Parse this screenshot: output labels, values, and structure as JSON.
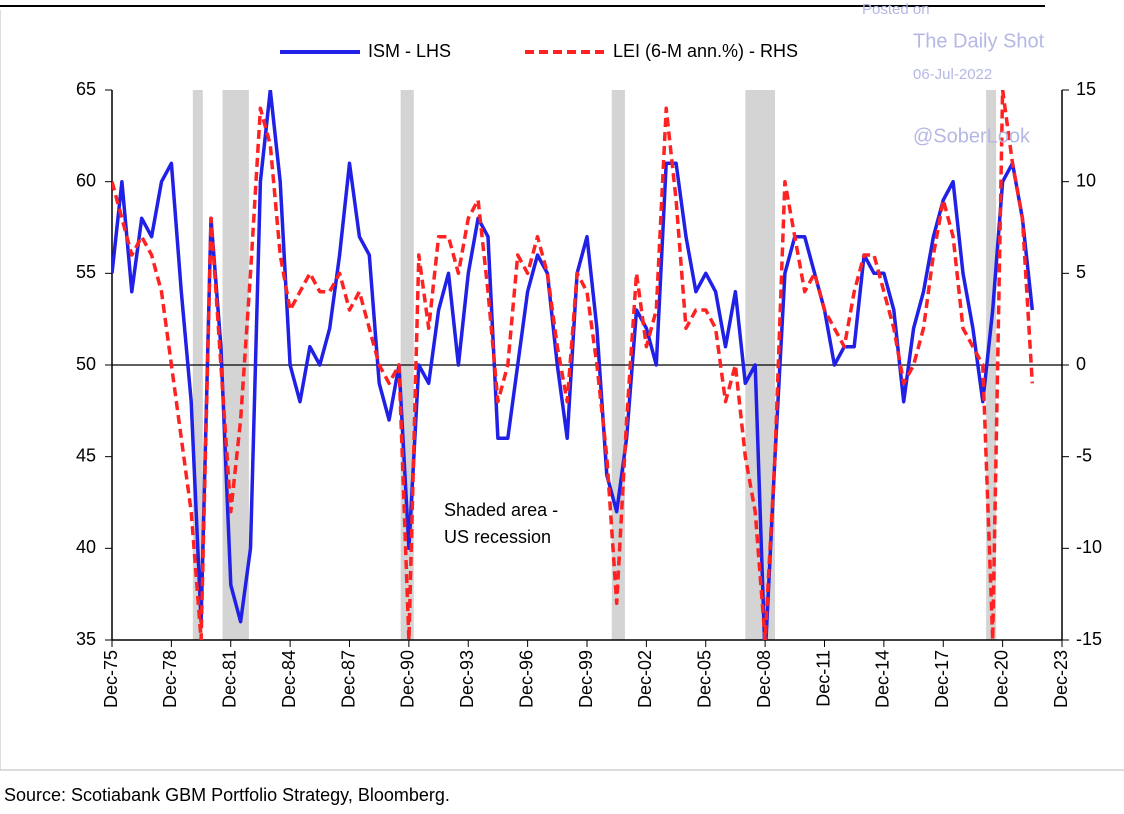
{
  "chart_data": {
    "type": "line",
    "legend": "top",
    "x": [
      "1975-12",
      "1976-06",
      "1976-12",
      "1977-06",
      "1977-12",
      "1978-06",
      "1978-12",
      "1979-06",
      "1979-12",
      "1980-06",
      "1980-12",
      "1981-06",
      "1981-12",
      "1982-06",
      "1982-12",
      "1983-06",
      "1983-12",
      "1984-06",
      "1984-12",
      "1985-06",
      "1985-12",
      "1986-06",
      "1986-12",
      "1987-06",
      "1987-12",
      "1988-06",
      "1988-12",
      "1989-06",
      "1989-12",
      "1990-06",
      "1990-12",
      "1991-06",
      "1991-12",
      "1992-06",
      "1992-12",
      "1993-06",
      "1993-12",
      "1994-06",
      "1994-12",
      "1995-06",
      "1995-12",
      "1996-06",
      "1996-12",
      "1997-06",
      "1997-12",
      "1998-06",
      "1998-12",
      "1999-06",
      "1999-12",
      "2000-06",
      "2000-12",
      "2001-06",
      "2001-12",
      "2002-06",
      "2002-12",
      "2003-06",
      "2003-12",
      "2004-06",
      "2004-12",
      "2005-06",
      "2005-12",
      "2006-06",
      "2006-12",
      "2007-06",
      "2007-12",
      "2008-06",
      "2008-12",
      "2009-06",
      "2009-12",
      "2010-06",
      "2010-12",
      "2011-06",
      "2011-12",
      "2012-06",
      "2012-12",
      "2013-06",
      "2013-12",
      "2014-06",
      "2014-12",
      "2015-06",
      "2015-12",
      "2016-06",
      "2016-12",
      "2017-06",
      "2017-12",
      "2018-06",
      "2018-12",
      "2019-06",
      "2019-12",
      "2020-06",
      "2020-12",
      "2021-06",
      "2021-12",
      "2022-06"
    ],
    "series": [
      {
        "name": "ISM - LHS",
        "color": "#2020e6",
        "axis": "y",
        "dash": false,
        "values": [
          55,
          60,
          54,
          58,
          57,
          60,
          61,
          54,
          48,
          36,
          58,
          51,
          38,
          36,
          40,
          60,
          65,
          60,
          50,
          48,
          51,
          50,
          52,
          56,
          61,
          57,
          56,
          49,
          47,
          50,
          40,
          50,
          49,
          53,
          55,
          50,
          55,
          58,
          57,
          46,
          46,
          50,
          54,
          56,
          55,
          50,
          46,
          55,
          57,
          52,
          44,
          42,
          46,
          53,
          52,
          50,
          61,
          61,
          57,
          54,
          55,
          54,
          51,
          54,
          49,
          50,
          34,
          45,
          55,
          57,
          57,
          55,
          53,
          50,
          51,
          51,
          56,
          55,
          55,
          53,
          48,
          52,
          54,
          57,
          59,
          60,
          55,
          52,
          48,
          53,
          60,
          61,
          58,
          53
        ]
      },
      {
        "name": "LEI (6-M ann.%) - RHS",
        "color": "#ff2222",
        "axis": "y2",
        "dash": true,
        "values": [
          10,
          8,
          6,
          7,
          6,
          4,
          0,
          -4,
          -8,
          -15,
          8,
          0,
          -8,
          -3,
          5,
          14,
          12,
          6,
          3,
          4,
          5,
          4,
          4,
          5,
          3,
          4,
          2,
          0,
          -1,
          0,
          -15,
          6,
          2,
          7,
          7,
          5,
          8,
          9,
          4,
          -2,
          0,
          6,
          5,
          7,
          5,
          1,
          -2,
          5,
          4,
          0,
          -5,
          -13,
          -3,
          5,
          1,
          3,
          14,
          9,
          2,
          3,
          3,
          2,
          -2,
          0,
          -5,
          -8,
          -15,
          -5,
          10,
          7,
          4,
          5,
          3,
          2,
          1,
          4,
          6,
          6,
          4,
          2,
          -1,
          0,
          2,
          6,
          9,
          7,
          2,
          1,
          0,
          -15,
          15,
          11,
          8,
          -1
        ]
      }
    ],
    "recessions": [
      [
        "1980-01",
        "1980-07"
      ],
      [
        "1981-07",
        "1982-11"
      ],
      [
        "1990-07",
        "1991-03"
      ],
      [
        "2001-03",
        "2001-11"
      ],
      [
        "2007-12",
        "2009-06"
      ],
      [
        "2020-02",
        "2020-04"
      ]
    ],
    "xlim": [
      "1975-12",
      "2023-12"
    ],
    "xticks": [
      {
        "value": "1975-12",
        "label": "Dec-75"
      },
      {
        "value": "1978-12",
        "label": "Dec-78"
      },
      {
        "value": "1981-12",
        "label": "Dec-81"
      },
      {
        "value": "1984-12",
        "label": "Dec-84"
      },
      {
        "value": "1987-12",
        "label": "Dec-87"
      },
      {
        "value": "1990-12",
        "label": "Dec-90"
      },
      {
        "value": "1993-12",
        "label": "Dec-93"
      },
      {
        "value": "1996-12",
        "label": "Dec-96"
      },
      {
        "value": "1999-12",
        "label": "Dec-99"
      },
      {
        "value": "2002-12",
        "label": "Dec-02"
      },
      {
        "value": "2005-12",
        "label": "Dec-05"
      },
      {
        "value": "2008-12",
        "label": "Dec-08"
      },
      {
        "value": "2011-12",
        "label": "Dec-11"
      },
      {
        "value": "2014-12",
        "label": "Dec-14"
      },
      {
        "value": "2017-12",
        "label": "Dec-17"
      },
      {
        "value": "2020-12",
        "label": "Dec-20"
      },
      {
        "value": "2023-12",
        "label": "Dec-23"
      }
    ],
    "ylim": [
      35,
      65
    ],
    "yticks": [
      35,
      40,
      45,
      50,
      55,
      60,
      65
    ],
    "y2lim": [
      -15,
      15
    ],
    "y2ticks": [
      -15,
      -10,
      -5,
      0,
      5,
      10,
      15
    ],
    "annotation": [
      "Shaded area -",
      "US recession"
    ],
    "watermark": [
      "Posted on",
      "The Daily Shot",
      "06-Jul-2022",
      "@SoberLook"
    ],
    "source": "Source: Scotiabank GBM Portfolio Strategy, Bloomberg."
  }
}
